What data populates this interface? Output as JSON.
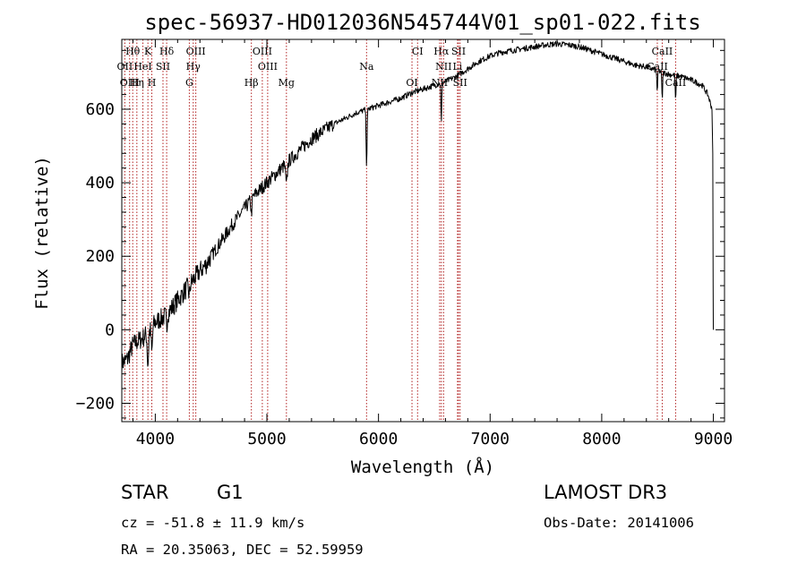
{
  "chart_data": {
    "type": "line",
    "title": "spec-56937-HD012036N545744V01_sp01-022.fits",
    "xlabel": "Wavelength (Å)",
    "ylabel": "Flux (relative)",
    "xlim": [
      3700,
      9100
    ],
    "ylim": [
      -250,
      790
    ],
    "xticks": [
      4000,
      5000,
      6000,
      7000,
      8000,
      9000
    ],
    "yticks": [
      -200,
      0,
      200,
      400,
      600
    ],
    "line_color": "#000000",
    "marker_color": "#b22222",
    "series": [
      {
        "name": "flux",
        "x": [
          3700,
          3750,
          3800,
          3850,
          3900,
          3950,
          4000,
          4050,
          4100,
          4150,
          4200,
          4250,
          4300,
          4350,
          4400,
          4450,
          4500,
          4600,
          4700,
          4800,
          4900,
          5000,
          5100,
          5200,
          5300,
          5400,
          5500,
          5600,
          5700,
          5800,
          5900,
          6000,
          6100,
          6200,
          6300,
          6400,
          6500,
          6600,
          6700,
          6800,
          6900,
          7000,
          7100,
          7200,
          7300,
          7400,
          7500,
          7600,
          7700,
          7800,
          7900,
          8000,
          8100,
          8200,
          8300,
          8400,
          8500,
          8600,
          8700,
          8800,
          8900,
          8950,
          8990
        ],
        "y": [
          -90,
          -80,
          -40,
          -30,
          -20,
          0,
          20,
          30,
          40,
          60,
          80,
          100,
          120,
          140,
          160,
          175,
          200,
          245,
          290,
          330,
          370,
          400,
          430,
          460,
          490,
          520,
          540,
          560,
          575,
          590,
          600,
          610,
          620,
          630,
          645,
          655,
          665,
          675,
          690,
          710,
          730,
          745,
          755,
          760,
          765,
          770,
          775,
          778,
          775,
          770,
          760,
          750,
          740,
          730,
          720,
          715,
          705,
          695,
          690,
          680,
          665,
          640,
          600
        ]
      }
    ],
    "spectral_lines": [
      {
        "label": "Hθ",
        "wave": 3798,
        "row": 0
      },
      {
        "label": "K",
        "wave": 3934,
        "row": 0
      },
      {
        "label": "Hδ",
        "wave": 4102,
        "row": 0
      },
      {
        "label": "OIII",
        "wave": 4363,
        "row": 0
      },
      {
        "label": "OIII",
        "wave": 4959,
        "row": 0
      },
      {
        "label": "CI",
        "wave": 6350,
        "row": 0
      },
      {
        "label": "Hα",
        "wave": 6563,
        "row": 0
      },
      {
        "label": "SII",
        "wave": 6717,
        "row": 0
      },
      {
        "label": "CaII",
        "wave": 8542,
        "row": 0
      },
      {
        "label": "OII",
        "wave": 3727,
        "row": 1
      },
      {
        "label": "HeI",
        "wave": 3889,
        "row": 1
      },
      {
        "label": "SII",
        "wave": 4069,
        "row": 1
      },
      {
        "label": "Hγ",
        "wave": 4340,
        "row": 1
      },
      {
        "label": "OIII",
        "wave": 5007,
        "row": 1
      },
      {
        "label": "Na",
        "wave": 5893,
        "row": 1
      },
      {
        "label": "NII",
        "wave": 6583,
        "row": 1
      },
      {
        "label": "Li",
        "wave": 6708,
        "row": 1
      },
      {
        "label": "CaII",
        "wave": 8498,
        "row": 1
      },
      {
        "label": "OIII",
        "wave": 3770,
        "row": 2
      },
      {
        "label": "Hη",
        "wave": 3835,
        "row": 2
      },
      {
        "label": "H",
        "wave": 3969,
        "row": 2
      },
      {
        "label": "G",
        "wave": 4305,
        "row": 2
      },
      {
        "label": "Hβ",
        "wave": 4861,
        "row": 2
      },
      {
        "label": "Mg",
        "wave": 5175,
        "row": 2
      },
      {
        "label": "OI",
        "wave": 6300,
        "row": 2
      },
      {
        "label": "NII",
        "wave": 6548,
        "row": 2
      },
      {
        "label": "SII",
        "wave": 6731,
        "row": 2
      },
      {
        "label": "CaII",
        "wave": 8662,
        "row": 2
      }
    ]
  },
  "info": {
    "object_class": "STAR",
    "subclass": "G1",
    "survey": "LAMOST DR3",
    "redshift": "cz = -51.8 ± 11.9 km/s",
    "obs_date": "Obs-Date: 20141006",
    "coords": "RA =  20.35063, DEC =  52.59959"
  }
}
